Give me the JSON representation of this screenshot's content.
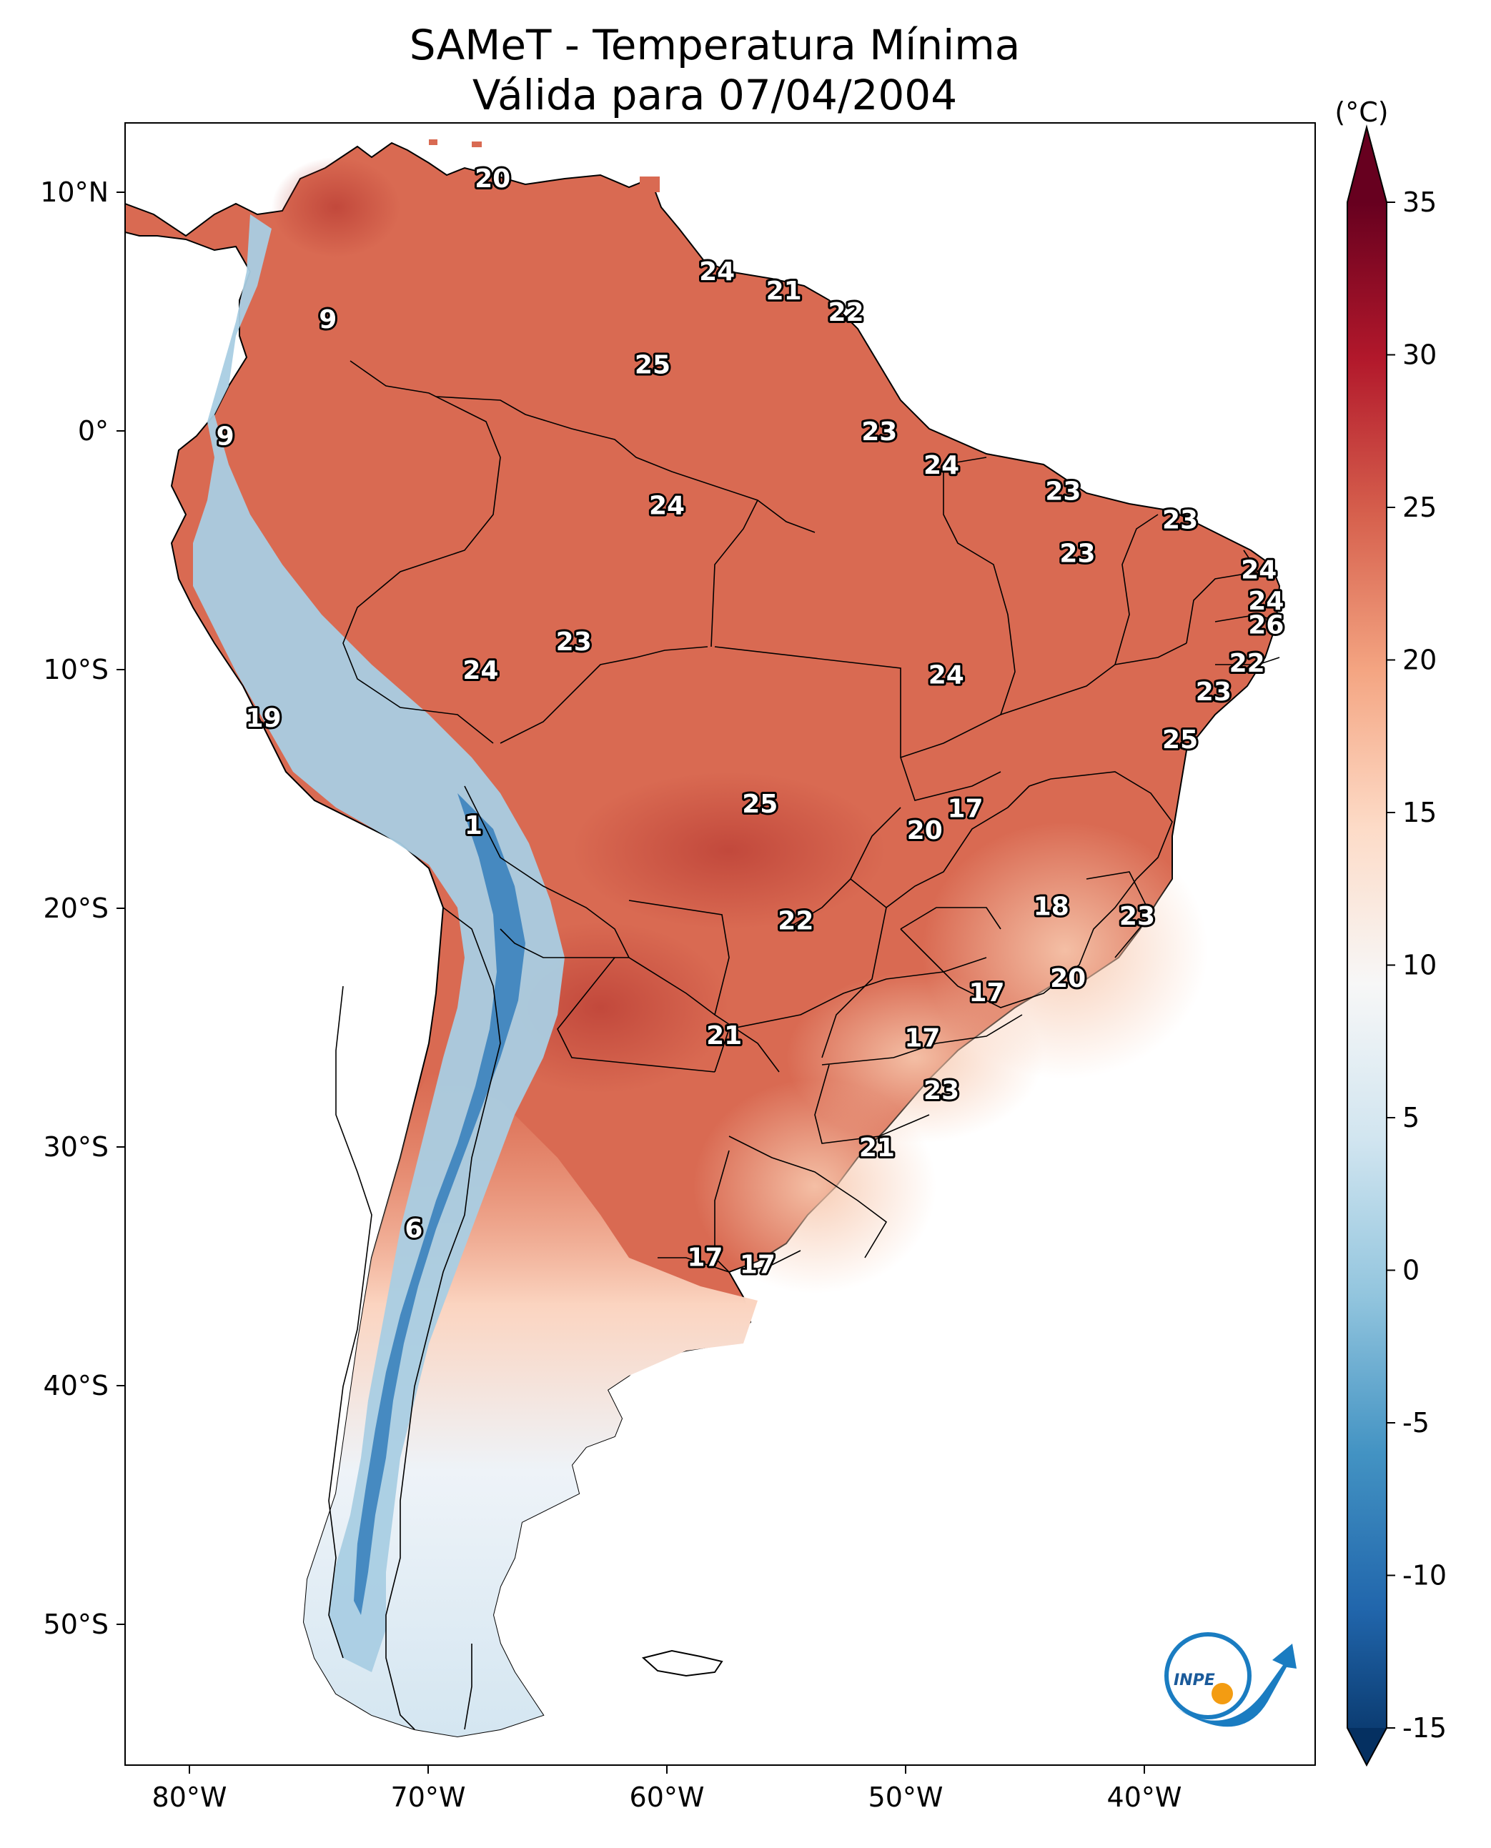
{
  "title": {
    "line1": "SAMeT - Temperatura Mínima",
    "line2": "Válida para 07/04/2004"
  },
  "map": {
    "lon_ticks": [
      "80°W",
      "70°W",
      "60°W",
      "50°W",
      "40°W"
    ],
    "lat_ticks": [
      "10°N",
      "0°",
      "10°S",
      "20°S",
      "30°S",
      "40°S",
      "50°S"
    ],
    "station_labels": [
      {
        "value": "20",
        "lon": -67.3,
        "lat": 10.6
      },
      {
        "value": "24",
        "lon": -57.9,
        "lat": 6.7
      },
      {
        "value": "21",
        "lon": -55.1,
        "lat": 5.9
      },
      {
        "value": "22",
        "lon": -52.5,
        "lat": 5.0
      },
      {
        "value": "9",
        "lon": -74.2,
        "lat": 4.7
      },
      {
        "value": "25",
        "lon": -60.6,
        "lat": 2.8
      },
      {
        "value": "9",
        "lon": -78.5,
        "lat": -0.2
      },
      {
        "value": "23",
        "lon": -51.1,
        "lat": 0.0
      },
      {
        "value": "24",
        "lon": -48.5,
        "lat": -1.4
      },
      {
        "value": "24",
        "lon": -60.0,
        "lat": -3.1
      },
      {
        "value": "23",
        "lon": -43.4,
        "lat": -2.5
      },
      {
        "value": "23",
        "lon": -38.5,
        "lat": -3.7
      },
      {
        "value": "23",
        "lon": -42.8,
        "lat": -5.1
      },
      {
        "value": "24",
        "lon": -35.2,
        "lat": -5.8
      },
      {
        "value": "24",
        "lon": -34.9,
        "lat": -7.1
      },
      {
        "value": "26",
        "lon": -34.9,
        "lat": -8.1
      },
      {
        "value": "23",
        "lon": -63.9,
        "lat": -8.8
      },
      {
        "value": "22",
        "lon": -35.7,
        "lat": -9.7
      },
      {
        "value": "24",
        "lon": -67.8,
        "lat": -10.0
      },
      {
        "value": "24",
        "lon": -48.3,
        "lat": -10.2
      },
      {
        "value": "23",
        "lon": -37.1,
        "lat": -10.9
      },
      {
        "value": "19",
        "lon": -76.9,
        "lat": -12.0
      },
      {
        "value": "25",
        "lon": -38.5,
        "lat": -12.9
      },
      {
        "value": "17",
        "lon": -47.5,
        "lat": -15.8
      },
      {
        "value": "25",
        "lon": -56.1,
        "lat": -15.6
      },
      {
        "value": "1",
        "lon": -68.1,
        "lat": -16.5
      },
      {
        "value": "20",
        "lon": -49.2,
        "lat": -16.7
      },
      {
        "value": "18",
        "lon": -43.9,
        "lat": -19.9
      },
      {
        "value": "22",
        "lon": -54.6,
        "lat": -20.5
      },
      {
        "value": "23",
        "lon": -40.3,
        "lat": -20.3
      },
      {
        "value": "20",
        "lon": -43.2,
        "lat": -22.9
      },
      {
        "value": "17",
        "lon": -46.6,
        "lat": -23.5
      },
      {
        "value": "21",
        "lon": -57.6,
        "lat": -25.3
      },
      {
        "value": "17",
        "lon": -49.3,
        "lat": -25.4
      },
      {
        "value": "23",
        "lon": -48.5,
        "lat": -27.6
      },
      {
        "value": "21",
        "lon": -51.2,
        "lat": -30.0
      },
      {
        "value": "6",
        "lon": -70.6,
        "lat": -33.4
      },
      {
        "value": "17",
        "lon": -58.4,
        "lat": -34.6
      },
      {
        "value": "17",
        "lon": -56.2,
        "lat": -34.9
      }
    ]
  },
  "colorbar": {
    "unit": "(°C)",
    "ticks": [
      "35",
      "30",
      "25",
      "20",
      "15",
      "10",
      "5",
      "0",
      "-5",
      "-10",
      "-15"
    ],
    "range": [
      -15,
      35
    ],
    "colors": [
      "#053061",
      "#2166ac",
      "#4393c3",
      "#92c5de",
      "#d1e5f0",
      "#f7f7f7",
      "#fddbc7",
      "#f4a582",
      "#d6604d",
      "#b2182b",
      "#67001f"
    ]
  },
  "logo": {
    "text": "INPE",
    "colors": {
      "blue": "#1a7cc1",
      "orange": "#f39c12"
    }
  }
}
